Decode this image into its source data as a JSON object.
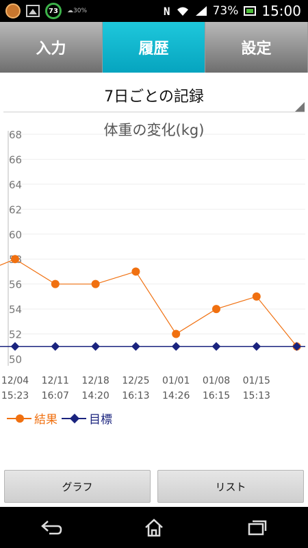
{
  "status_bar": {
    "notification_badge": "73",
    "weather_text": "30%",
    "battery_percent": "73%",
    "time": "15:00",
    "icons": [
      "app-icon",
      "gallery-icon",
      "badge-icon",
      "weather-icon",
      "nfc-icon",
      "wifi-icon",
      "signal-icon",
      "battery-icon"
    ]
  },
  "tabs": [
    {
      "label": "入力",
      "active": false
    },
    {
      "label": "履歴",
      "active": true
    },
    {
      "label": "設定",
      "active": false
    }
  ],
  "section": {
    "title": "7日ごとの記録"
  },
  "chart_data": {
    "type": "line",
    "title": "体重の変化(kg)",
    "ylim": [
      50,
      68
    ],
    "y_ticks": [
      "68",
      "66",
      "64",
      "62",
      "60",
      "58",
      "56",
      "54",
      "52",
      "50"
    ],
    "categories": [
      [
        "12/04",
        "15:23"
      ],
      [
        "12/11",
        "16:07"
      ],
      [
        "12/18",
        "14:20"
      ],
      [
        "12/25",
        "16:13"
      ],
      [
        "01/01",
        "14:26"
      ],
      [
        "01/08",
        "16:15"
      ],
      [
        "01/15",
        "15:13"
      ],
      [
        "",
        ""
      ]
    ],
    "series": [
      {
        "name": "結果",
        "color": "#f07010",
        "marker": "circle",
        "values": [
          58,
          56,
          56,
          57,
          52,
          54,
          55,
          51
        ],
        "lead_in": 57.5
      },
      {
        "name": "目標",
        "color": "#1a237e",
        "marker": "diamond",
        "values": [
          51,
          51,
          51,
          51,
          51,
          51,
          51,
          51
        ]
      }
    ],
    "grid": true,
    "legend_position": "bottom-left"
  },
  "buttons": {
    "graph_label": "グラフ",
    "list_label": "リスト"
  },
  "nav_bar": {
    "icons": [
      "back-icon",
      "home-icon",
      "recent-apps-icon"
    ]
  }
}
